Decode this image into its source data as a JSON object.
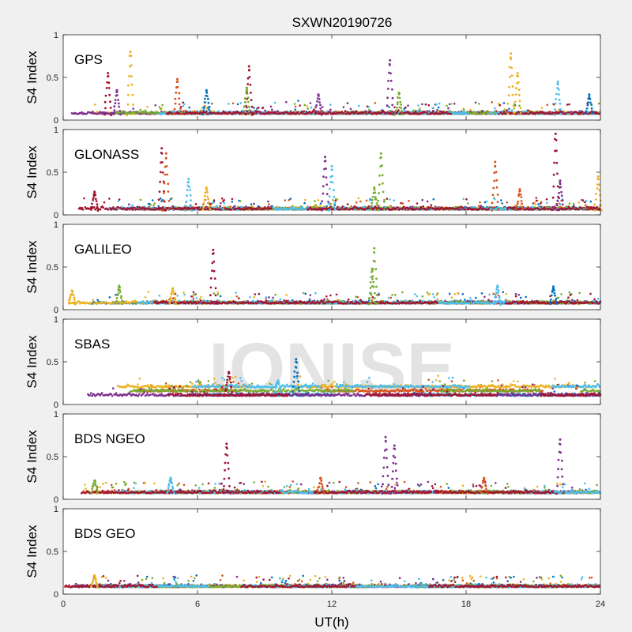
{
  "title": "SXWN20190726",
  "watermark": "IONISE",
  "colors": [
    "#0072BD",
    "#D95319",
    "#EDB120",
    "#7E2F8E",
    "#77AC30",
    "#4DBEEE",
    "#A2142F"
  ],
  "chart_data": {
    "type": "scatter",
    "title": "SXWN20190726",
    "xlabel": "UT(h)",
    "ylabel": "S4 Index",
    "xlim": [
      0,
      24
    ],
    "ylim": [
      0,
      1
    ],
    "xticks": [
      "0",
      "6",
      "12",
      "18",
      "24"
    ],
    "yticks": [
      "0",
      "0.5",
      "1"
    ],
    "grid": false,
    "panels": [
      {
        "label": "GPS",
        "baseline": 0.07,
        "spikes": [
          {
            "x": 2.0,
            "peak": 0.55,
            "series": 6
          },
          {
            "x": 2.4,
            "peak": 0.35,
            "series": 3
          },
          {
            "x": 3.0,
            "peak": 0.8,
            "series": 2
          },
          {
            "x": 5.1,
            "peak": 0.48,
            "series": 1
          },
          {
            "x": 6.4,
            "peak": 0.35,
            "series": 0
          },
          {
            "x": 8.3,
            "peak": 0.63,
            "series": 6
          },
          {
            "x": 8.2,
            "peak": 0.38,
            "series": 4
          },
          {
            "x": 11.4,
            "peak": 0.3,
            "series": 3
          },
          {
            "x": 14.6,
            "peak": 0.7,
            "series": 3
          },
          {
            "x": 15.0,
            "peak": 0.32,
            "series": 4
          },
          {
            "x": 20.0,
            "peak": 0.78,
            "series": 2
          },
          {
            "x": 20.3,
            "peak": 0.55,
            "series": 2
          },
          {
            "x": 22.1,
            "peak": 0.45,
            "series": 5
          },
          {
            "x": 23.5,
            "peak": 0.3,
            "series": 0
          }
        ]
      },
      {
        "label": "GLONASS",
        "baseline": 0.06,
        "spikes": [
          {
            "x": 1.4,
            "peak": 0.27,
            "series": 6
          },
          {
            "x": 4.4,
            "peak": 0.78,
            "series": 6
          },
          {
            "x": 4.6,
            "peak": 0.72,
            "series": 1
          },
          {
            "x": 5.6,
            "peak": 0.42,
            "series": 5
          },
          {
            "x": 6.4,
            "peak": 0.32,
            "series": 2
          },
          {
            "x": 11.7,
            "peak": 0.68,
            "series": 3
          },
          {
            "x": 12.0,
            "peak": 0.57,
            "series": 5
          },
          {
            "x": 14.2,
            "peak": 0.72,
            "series": 4
          },
          {
            "x": 13.9,
            "peak": 0.32,
            "series": 4
          },
          {
            "x": 19.3,
            "peak": 0.62,
            "series": 1
          },
          {
            "x": 20.4,
            "peak": 0.3,
            "series": 1
          },
          {
            "x": 22.0,
            "peak": 0.95,
            "series": 6
          },
          {
            "x": 22.2,
            "peak": 0.4,
            "series": 3
          },
          {
            "x": 23.9,
            "peak": 0.45,
            "series": 2
          }
        ]
      },
      {
        "label": "GALILEO",
        "baseline": 0.07,
        "spikes": [
          {
            "x": 0.4,
            "peak": 0.22,
            "series": 2
          },
          {
            "x": 2.5,
            "peak": 0.28,
            "series": 4
          },
          {
            "x": 4.9,
            "peak": 0.25,
            "series": 2
          },
          {
            "x": 6.7,
            "peak": 0.7,
            "series": 6
          },
          {
            "x": 13.9,
            "peak": 0.72,
            "series": 4
          },
          {
            "x": 13.8,
            "peak": 0.48,
            "series": 4
          },
          {
            "x": 19.4,
            "peak": 0.28,
            "series": 5
          },
          {
            "x": 21.9,
            "peak": 0.27,
            "series": 0
          }
        ]
      },
      {
        "label": "SBAS",
        "baseline": 0.15,
        "spikes": [
          {
            "x": 7.4,
            "peak": 0.38,
            "series": 6
          },
          {
            "x": 10.4,
            "peak": 0.53,
            "series": 0
          },
          {
            "x": 9.6,
            "peak": 0.28,
            "series": 5
          }
        ]
      },
      {
        "label": "BDS NGEO",
        "baseline": 0.07,
        "spikes": [
          {
            "x": 1.4,
            "peak": 0.22,
            "series": 4
          },
          {
            "x": 4.8,
            "peak": 0.25,
            "series": 5
          },
          {
            "x": 7.3,
            "peak": 0.65,
            "series": 6
          },
          {
            "x": 11.5,
            "peak": 0.25,
            "series": 1
          },
          {
            "x": 14.4,
            "peak": 0.73,
            "series": 3
          },
          {
            "x": 14.8,
            "peak": 0.63,
            "series": 3
          },
          {
            "x": 18.8,
            "peak": 0.25,
            "series": 1
          },
          {
            "x": 22.2,
            "peak": 0.7,
            "series": 3
          }
        ]
      },
      {
        "label": "BDS GEO",
        "baseline": 0.08,
        "spikes": [
          {
            "x": 1.4,
            "peak": 0.22,
            "series": 2
          }
        ]
      }
    ]
  }
}
